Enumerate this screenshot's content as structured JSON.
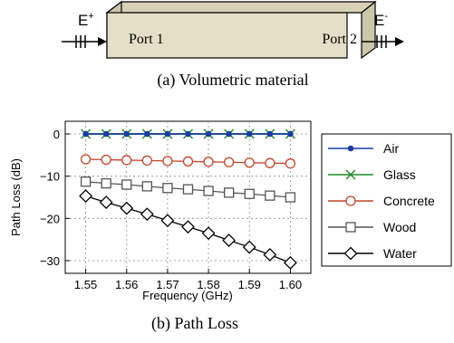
{
  "top": {
    "port1_label": "Port 1",
    "port2_label": "Port 2",
    "e_in_label": "E",
    "e_in_sup": "+",
    "e_out_label": "E",
    "e_out_sup": "-",
    "caption": "(a)  Volumetric material"
  },
  "bottom_caption": "(b)  Path Loss",
  "colors": {
    "Air": "#1a3fa0",
    "Glass": "#1f8a2a",
    "Concrete": "#c2452a",
    "Wood": "#555555",
    "Water": "#000000",
    "block_fill": "#e6dfc8",
    "block_side": "#cdc6ad"
  },
  "chart_data": {
    "type": "line",
    "title": "",
    "xlabel": "Frequency (GHz)",
    "ylabel": "Path Loss (dB)",
    "xlim": [
      1.545,
      1.605
    ],
    "ylim": [
      -33,
      3
    ],
    "xticks": [
      1.55,
      1.56,
      1.57,
      1.58,
      1.59,
      1.6
    ],
    "xtick_labels": [
      "1.55",
      "1.56",
      "1.57",
      "1.58",
      "1.59",
      "1.60"
    ],
    "yticks": [
      0,
      -10,
      -20,
      -30
    ],
    "ytick_labels": [
      "0",
      "−10",
      "−20",
      "−30"
    ],
    "grid": true,
    "legend_position": "right",
    "x": [
      1.55,
      1.555,
      1.56,
      1.565,
      1.57,
      1.575,
      1.58,
      1.585,
      1.59,
      1.595,
      1.6
    ],
    "series": [
      {
        "name": "Air",
        "marker": "dot",
        "values": [
          0,
          0,
          0,
          0,
          0,
          0,
          0,
          0,
          0,
          0,
          0
        ]
      },
      {
        "name": "Glass",
        "marker": "x",
        "values": [
          0,
          0,
          0,
          0,
          0,
          0,
          0,
          0,
          0,
          0,
          0
        ]
      },
      {
        "name": "Concrete",
        "marker": "circle",
        "values": [
          -6.0,
          -6.1,
          -6.2,
          -6.3,
          -6.4,
          -6.5,
          -6.6,
          -6.7,
          -6.8,
          -6.9,
          -7.0
        ]
      },
      {
        "name": "Wood",
        "marker": "square",
        "values": [
          -11.3,
          -11.7,
          -12.0,
          -12.4,
          -12.8,
          -13.1,
          -13.5,
          -13.9,
          -14.2,
          -14.6,
          -15.0
        ]
      },
      {
        "name": "Water",
        "marker": "diamond",
        "values": [
          -14.7,
          -16.2,
          -17.6,
          -19.0,
          -20.5,
          -22.0,
          -23.5,
          -25.2,
          -26.8,
          -28.6,
          -30.5
        ]
      }
    ]
  }
}
